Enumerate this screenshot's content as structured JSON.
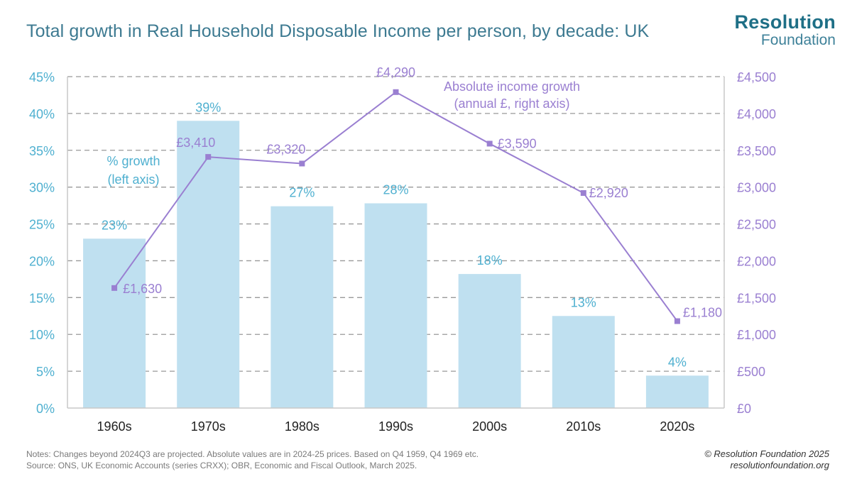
{
  "title": "Total growth in Real Household Disposable Income per person, by decade: UK",
  "logo": {
    "line1": "Resolution",
    "line2": "Foundation"
  },
  "notes": {
    "line1": "Notes: Changes beyond 2024Q3 are projected. Absolute values are in 2024-25 prices. Based on Q4 1959, Q4 1969 etc.",
    "line2": "Source: ONS, UK Economic Accounts (series CRXX); OBR, Economic and Fiscal Outlook, March 2025."
  },
  "credit": {
    "line1": "© Resolution Foundation 2025",
    "line2": "resolutionfoundation.org"
  },
  "colors": {
    "bar": "#bfe0f0",
    "bar_label": "#4fb0d0",
    "line": "#9a7fd1",
    "left_axis": "#4fb0d0",
    "right_axis": "#9a7fd1",
    "grid": "#999999"
  },
  "chart_data": {
    "type": "bar+line",
    "categories": [
      "1960s",
      "1970s",
      "1980s",
      "1990s",
      "2000s",
      "2010s",
      "2020s"
    ],
    "bars": {
      "name": "% growth",
      "annotation": [
        "% growth",
        "(left axis)"
      ],
      "values": [
        23,
        39,
        27.4,
        27.8,
        18.2,
        12.5,
        4.4
      ],
      "labels": [
        "23%",
        "39%",
        "27%",
        "28%",
        "18%",
        "13%",
        "4%"
      ]
    },
    "line": {
      "name": "Absolute income growth",
      "annotation": [
        "Absolute income growth",
        "(annual £, right axis)"
      ],
      "values": [
        1630,
        3410,
        3320,
        4290,
        3590,
        2920,
        1180
      ],
      "labels": [
        "£1,630",
        "£3,410",
        "£3,320",
        "£4,290",
        "£3,590",
        "£2,920",
        "£1,180"
      ]
    },
    "left_axis": {
      "ylim": [
        0,
        45
      ],
      "ticks": [
        "0%",
        "5%",
        "10%",
        "15%",
        "20%",
        "25%",
        "30%",
        "35%",
        "40%",
        "45%"
      ]
    },
    "right_axis": {
      "ylim": [
        0,
        4500
      ],
      "ticks": [
        "£0",
        "£500",
        "£1,000",
        "£1,500",
        "£2,000",
        "£2,500",
        "£3,000",
        "£3,500",
        "£4,000",
        "£4,500"
      ]
    },
    "grid": true
  }
}
